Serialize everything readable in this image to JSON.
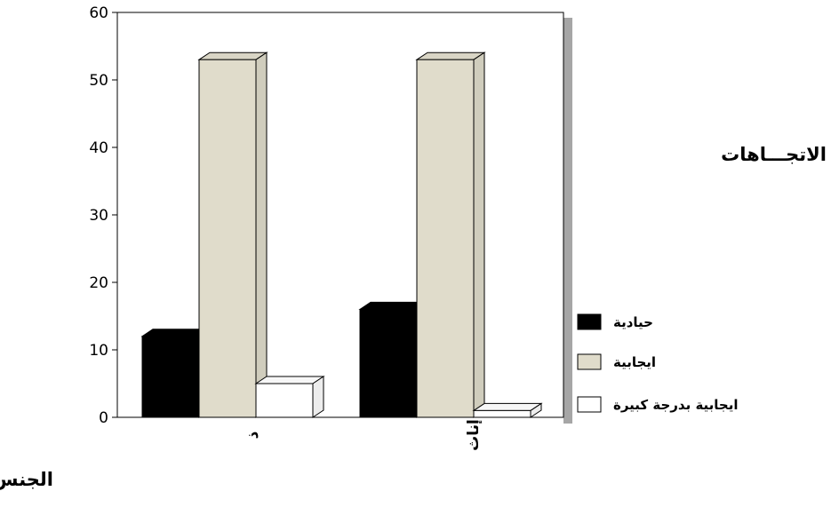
{
  "chart_data": {
    "type": "bar",
    "title": "الاتجـــاهات",
    "xlabel": "الجنس",
    "ylabel": "",
    "categories": [
      "ذ",
      "إناث"
    ],
    "series": [
      {
        "name": "حيادية",
        "values": [
          12,
          16
        ],
        "color": "#000000"
      },
      {
        "name": "ايجابية",
        "values": [
          53,
          53
        ],
        "color": "#e0dccb"
      },
      {
        "name": "ايجابية بدرجة كبيرة",
        "values": [
          5,
          1
        ],
        "color": "#ffffff"
      }
    ],
    "yticks": [
      "0",
      "10",
      "20",
      "30",
      "40",
      "50",
      "60"
    ],
    "ylim": [
      0,
      60
    ],
    "grid": false,
    "legend_position": "right"
  }
}
